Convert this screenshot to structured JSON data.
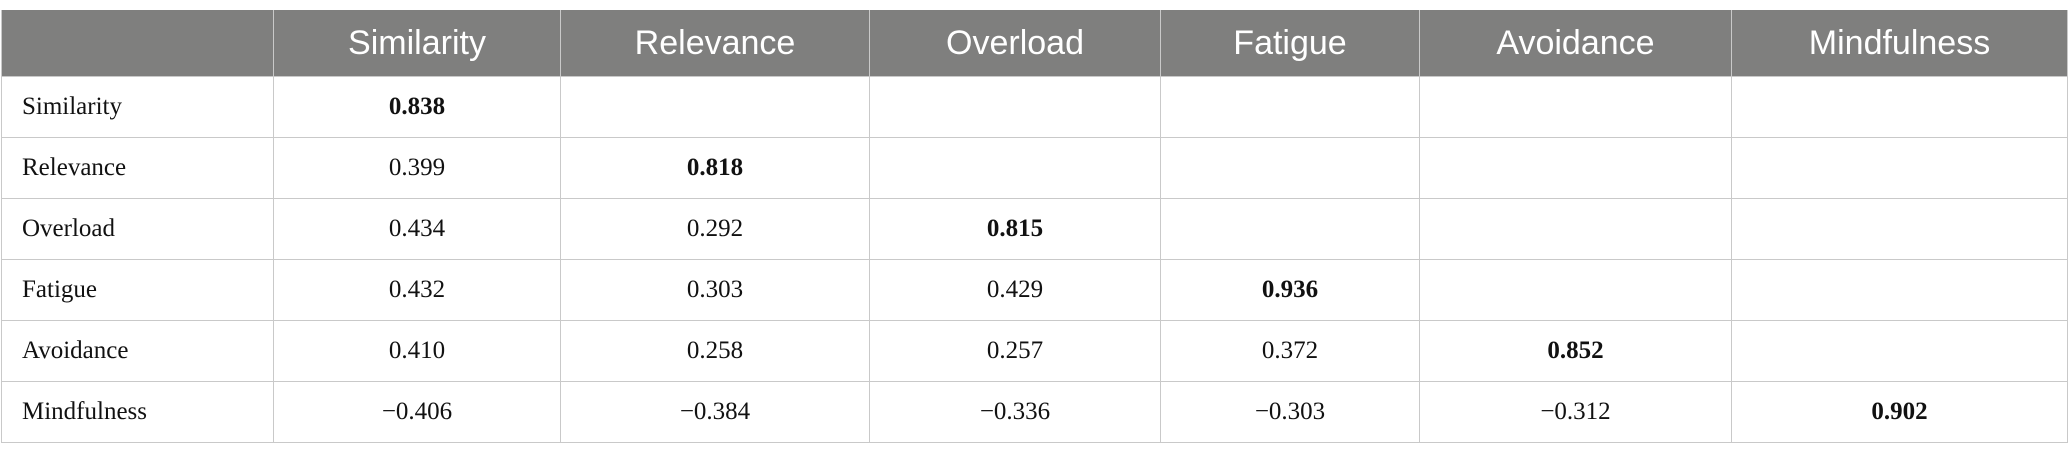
{
  "table": {
    "columns": [
      "Similarity",
      "Relevance",
      "Overload",
      "Fatigue",
      "Avoidance",
      "Mindfulness"
    ],
    "rows": [
      {
        "label": "Similarity",
        "values": [
          "0.838"
        ]
      },
      {
        "label": "Relevance",
        "values": [
          "0.399",
          "0.818"
        ]
      },
      {
        "label": "Overload",
        "values": [
          "0.434",
          "0.292",
          "0.815"
        ]
      },
      {
        "label": "Fatigue",
        "values": [
          "0.432",
          "0.303",
          "0.429",
          "0.936"
        ]
      },
      {
        "label": "Avoidance",
        "values": [
          "0.410",
          "0.258",
          "0.257",
          "0.372",
          "0.852"
        ]
      },
      {
        "label": "Mindfulness",
        "values": [
          "−0.406",
          "−0.384",
          "−0.336",
          "−0.303",
          "−0.312",
          "0.902"
        ]
      }
    ]
  }
}
